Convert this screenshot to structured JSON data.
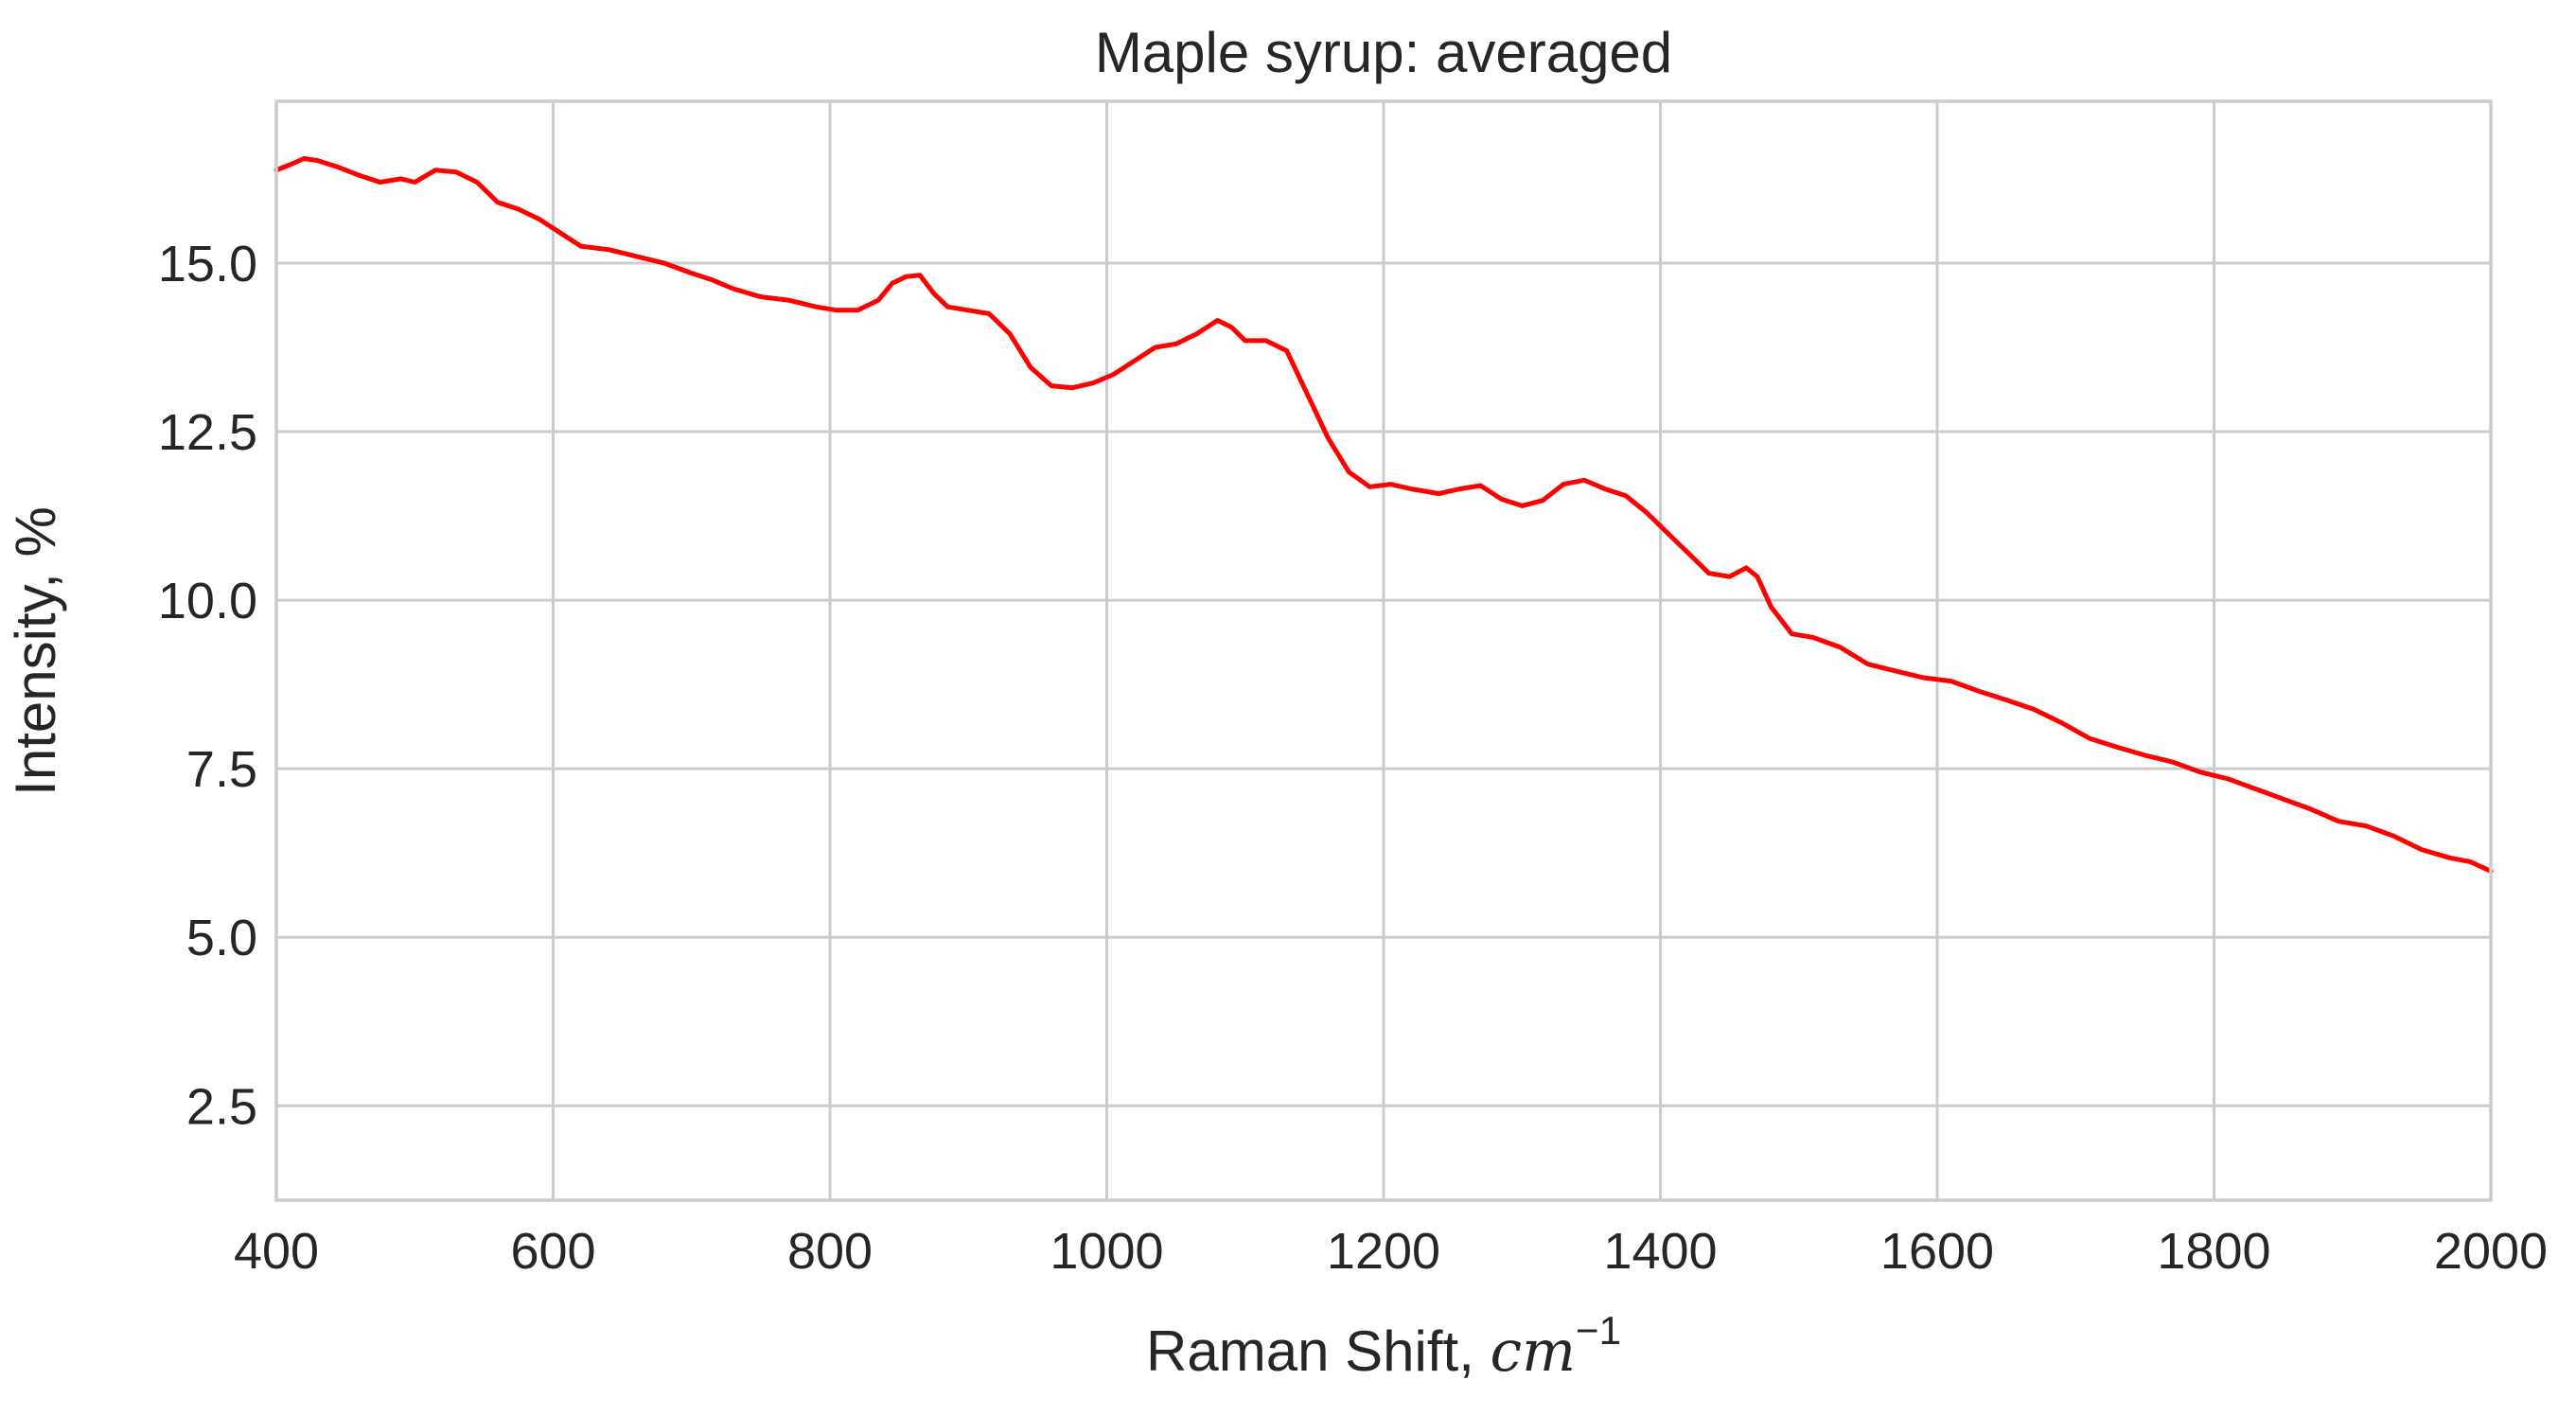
{
  "chart_data": {
    "type": "line",
    "title": "Maple syrup: averaged",
    "xlabel": "Raman Shift, ",
    "xlabel_math": "cm",
    "xlabel_sup": "−1",
    "ylabel": "Intensity, %",
    "xlim": [
      400,
      2000
    ],
    "ylim": [
      1.1,
      17.4
    ],
    "xticks": [
      400,
      600,
      800,
      1000,
      1200,
      1400,
      1600,
      1800,
      2000
    ],
    "xtick_labels": [
      "400",
      "600",
      "800",
      "1000",
      "1200",
      "1400",
      "1600",
      "1800",
      "2000"
    ],
    "yticks": [
      2.5,
      5.0,
      7.5,
      10.0,
      12.5,
      15.0
    ],
    "ytick_labels": [
      "2.5",
      "5.0",
      "7.5",
      "10.0",
      "12.5",
      "15.0"
    ],
    "grid": true,
    "series": [
      {
        "color": "#ff0000",
        "points": [
          [
            400,
            16.38
          ],
          [
            410,
            16.46
          ],
          [
            420,
            16.55
          ],
          [
            430,
            16.52
          ],
          [
            445,
            16.42
          ],
          [
            460,
            16.3
          ],
          [
            475,
            16.2
          ],
          [
            490,
            16.25
          ],
          [
            500,
            16.2
          ],
          [
            515,
            16.38
          ],
          [
            530,
            16.35
          ],
          [
            545,
            16.2
          ],
          [
            560,
            15.9
          ],
          [
            575,
            15.8
          ],
          [
            590,
            15.65
          ],
          [
            605,
            15.45
          ],
          [
            620,
            15.25
          ],
          [
            640,
            15.2
          ],
          [
            660,
            15.1
          ],
          [
            680,
            15.0
          ],
          [
            700,
            14.85
          ],
          [
            715,
            14.75
          ],
          [
            730,
            14.62
          ],
          [
            750,
            14.5
          ],
          [
            770,
            14.45
          ],
          [
            790,
            14.35
          ],
          [
            805,
            14.3
          ],
          [
            820,
            14.3
          ],
          [
            835,
            14.45
          ],
          [
            845,
            14.7
          ],
          [
            855,
            14.8
          ],
          [
            865,
            14.82
          ],
          [
            875,
            14.55
          ],
          [
            885,
            14.35
          ],
          [
            900,
            14.3
          ],
          [
            915,
            14.25
          ],
          [
            930,
            13.95
          ],
          [
            945,
            13.45
          ],
          [
            960,
            13.18
          ],
          [
            975,
            13.15
          ],
          [
            990,
            13.22
          ],
          [
            1005,
            13.35
          ],
          [
            1020,
            13.55
          ],
          [
            1035,
            13.75
          ],
          [
            1050,
            13.8
          ],
          [
            1065,
            13.95
          ],
          [
            1080,
            14.15
          ],
          [
            1090,
            14.05
          ],
          [
            1100,
            13.85
          ],
          [
            1115,
            13.85
          ],
          [
            1130,
            13.7
          ],
          [
            1145,
            13.05
          ],
          [
            1160,
            12.4
          ],
          [
            1175,
            11.9
          ],
          [
            1190,
            11.68
          ],
          [
            1205,
            11.72
          ],
          [
            1220,
            11.65
          ],
          [
            1240,
            11.58
          ],
          [
            1255,
            11.65
          ],
          [
            1270,
            11.7
          ],
          [
            1285,
            11.5
          ],
          [
            1300,
            11.4
          ],
          [
            1315,
            11.48
          ],
          [
            1330,
            11.72
          ],
          [
            1345,
            11.78
          ],
          [
            1360,
            11.65
          ],
          [
            1375,
            11.55
          ],
          [
            1390,
            11.3
          ],
          [
            1405,
            11.0
          ],
          [
            1420,
            10.7
          ],
          [
            1435,
            10.4
          ],
          [
            1450,
            10.35
          ],
          [
            1462,
            10.48
          ],
          [
            1470,
            10.35
          ],
          [
            1480,
            9.9
          ],
          [
            1495,
            9.5
          ],
          [
            1510,
            9.45
          ],
          [
            1530,
            9.3
          ],
          [
            1550,
            9.05
          ],
          [
            1570,
            8.95
          ],
          [
            1590,
            8.85
          ],
          [
            1610,
            8.8
          ],
          [
            1630,
            8.65
          ],
          [
            1650,
            8.52
          ],
          [
            1670,
            8.38
          ],
          [
            1690,
            8.18
          ],
          [
            1710,
            7.95
          ],
          [
            1730,
            7.82
          ],
          [
            1750,
            7.7
          ],
          [
            1770,
            7.6
          ],
          [
            1790,
            7.45
          ],
          [
            1810,
            7.35
          ],
          [
            1830,
            7.2
          ],
          [
            1850,
            7.05
          ],
          [
            1870,
            6.9
          ],
          [
            1890,
            6.72
          ],
          [
            1910,
            6.65
          ],
          [
            1930,
            6.5
          ],
          [
            1950,
            6.3
          ],
          [
            1970,
            6.18
          ],
          [
            1985,
            6.12
          ],
          [
            2000,
            5.98
          ]
        ]
      }
    ]
  }
}
